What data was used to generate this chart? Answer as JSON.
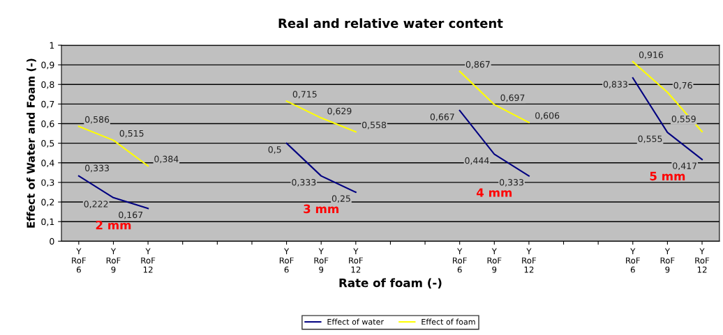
{
  "chart_data": {
    "type": "line",
    "title": "Real and relative water content",
    "xlabel": "Rate of foam (-)",
    "ylabel": "Effect of Water and Foam (-)",
    "categories": [
      "Y\nRoF\n6",
      "Y\nRoF\n9",
      "Y\nRoF\n12",
      null,
      null,
      null,
      "Y\nRoF\n6",
      "Y\nRoF\n9",
      "Y\nRoF\n12",
      null,
      null,
      "Y\nRoF\n6",
      "Y\nRoF\n9",
      "Y\nRoF\n12",
      null,
      null,
      "Y\nRoF\n6",
      "Y\nRoF\n9",
      "Y\nRoF\n12"
    ],
    "series": [
      {
        "name": "Effect of water",
        "color": "#000080",
        "values": [
          0.333,
          0.222,
          0.167,
          null,
          null,
          null,
          0.5,
          0.333,
          0.25,
          null,
          null,
          0.667,
          0.444,
          0.333,
          null,
          null,
          0.833,
          0.555,
          0.417
        ],
        "value_labels": [
          "0,333",
          "0,222",
          "0,167",
          null,
          null,
          null,
          "0,5",
          "0,333",
          "0,25",
          null,
          null,
          "0,667",
          "0,444",
          "0,333",
          null,
          null,
          "0,833",
          "0,555",
          "0,417"
        ]
      },
      {
        "name": "Effect of foam",
        "color": "#ffff00",
        "values": [
          0.586,
          0.515,
          0.384,
          null,
          null,
          null,
          0.715,
          0.629,
          0.558,
          null,
          null,
          0.867,
          0.697,
          0.606,
          null,
          null,
          0.916,
          0.76,
          0.559
        ],
        "value_labels": [
          "0,586",
          "0,515",
          "0,384",
          null,
          null,
          null,
          "0,715",
          "0,629",
          "0,558",
          null,
          null,
          "0,867",
          "0,697",
          "0,606",
          null,
          null,
          "0,916",
          "0,76",
          "0,559"
        ]
      }
    ],
    "ylim": [
      0,
      1
    ],
    "yticks": [
      0,
      {
        "value": 0.1,
        "label": "0,1"
      },
      {
        "value": 0.2,
        "label": "0,2"
      },
      {
        "value": 0.3,
        "label": "0,3"
      },
      {
        "value": 0.4,
        "label": "0,4"
      },
      {
        "value": 0.5,
        "label": "0,5"
      },
      {
        "value": 0.6,
        "label": "0,6"
      },
      {
        "value": 0.7,
        "label": "0,7"
      },
      {
        "value": 0.8,
        "label": "0,8"
      },
      {
        "value": 0.9,
        "label": "0,9"
      },
      1
    ],
    "annotations": [
      "2 mm",
      "3 mm",
      "4 mm",
      "5 mm"
    ],
    "grid": "y",
    "legend": "bottom",
    "marker": "none",
    "line_style": "solid"
  }
}
